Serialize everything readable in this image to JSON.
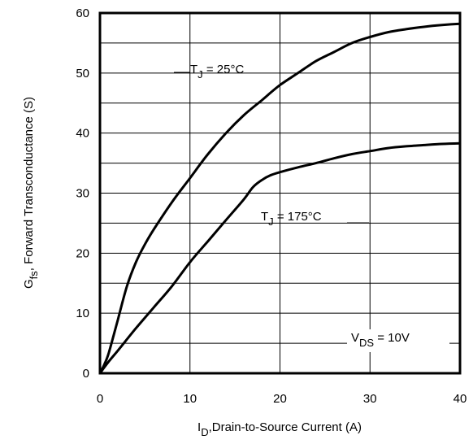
{
  "chart_data": {
    "type": "line",
    "xlabel": {
      "main": "I",
      "sub": "D",
      "rest": ",Drain-to-Source Current (A)"
    },
    "ylabel": {
      "main": "G",
      "sub": "fs",
      "rest": ", Forward Transconductance (S)"
    },
    "xlim": [
      0,
      40
    ],
    "ylim": [
      0,
      60
    ],
    "x_ticks": [
      "0",
      "10",
      "20",
      "30",
      "40"
    ],
    "y_ticks": [
      "0",
      "10",
      "20",
      "30",
      "40",
      "50",
      "60"
    ],
    "grid": true,
    "series": [
      {
        "label": {
          "main": "T",
          "sub": "J",
          "rest": " = 25°C"
        },
        "x": [
          0,
          0.5,
          1,
          2,
          3,
          4,
          5,
          6,
          8,
          10,
          12,
          14,
          16,
          18,
          20,
          22,
          24,
          26,
          28,
          30,
          32,
          34,
          36,
          38,
          40
        ],
        "y": [
          0,
          1.5,
          3.5,
          9,
          14.5,
          18.5,
          21.5,
          24,
          28.5,
          32.5,
          36.5,
          40,
          43,
          45.5,
          48,
          50,
          52,
          53.5,
          55,
          56,
          56.8,
          57.3,
          57.7,
          58,
          58.2
        ]
      },
      {
        "label": {
          "main": "T",
          "sub": "J",
          "rest": " = 175°C"
        },
        "x": [
          0,
          1,
          2,
          4,
          6,
          8,
          10,
          12,
          14,
          16,
          17,
          18,
          19,
          20,
          22,
          24,
          26,
          28,
          30,
          32,
          34,
          36,
          38,
          40
        ],
        "y": [
          0,
          2,
          3.8,
          7.5,
          11,
          14.5,
          18.5,
          22,
          25.5,
          29,
          31,
          32.2,
          33,
          33.5,
          34.3,
          35,
          35.8,
          36.5,
          37,
          37.5,
          37.8,
          38,
          38.2,
          38.3
        ]
      }
    ],
    "annotation": {
      "main": "V",
      "sub": "DS",
      "rest": " = 10V"
    }
  }
}
